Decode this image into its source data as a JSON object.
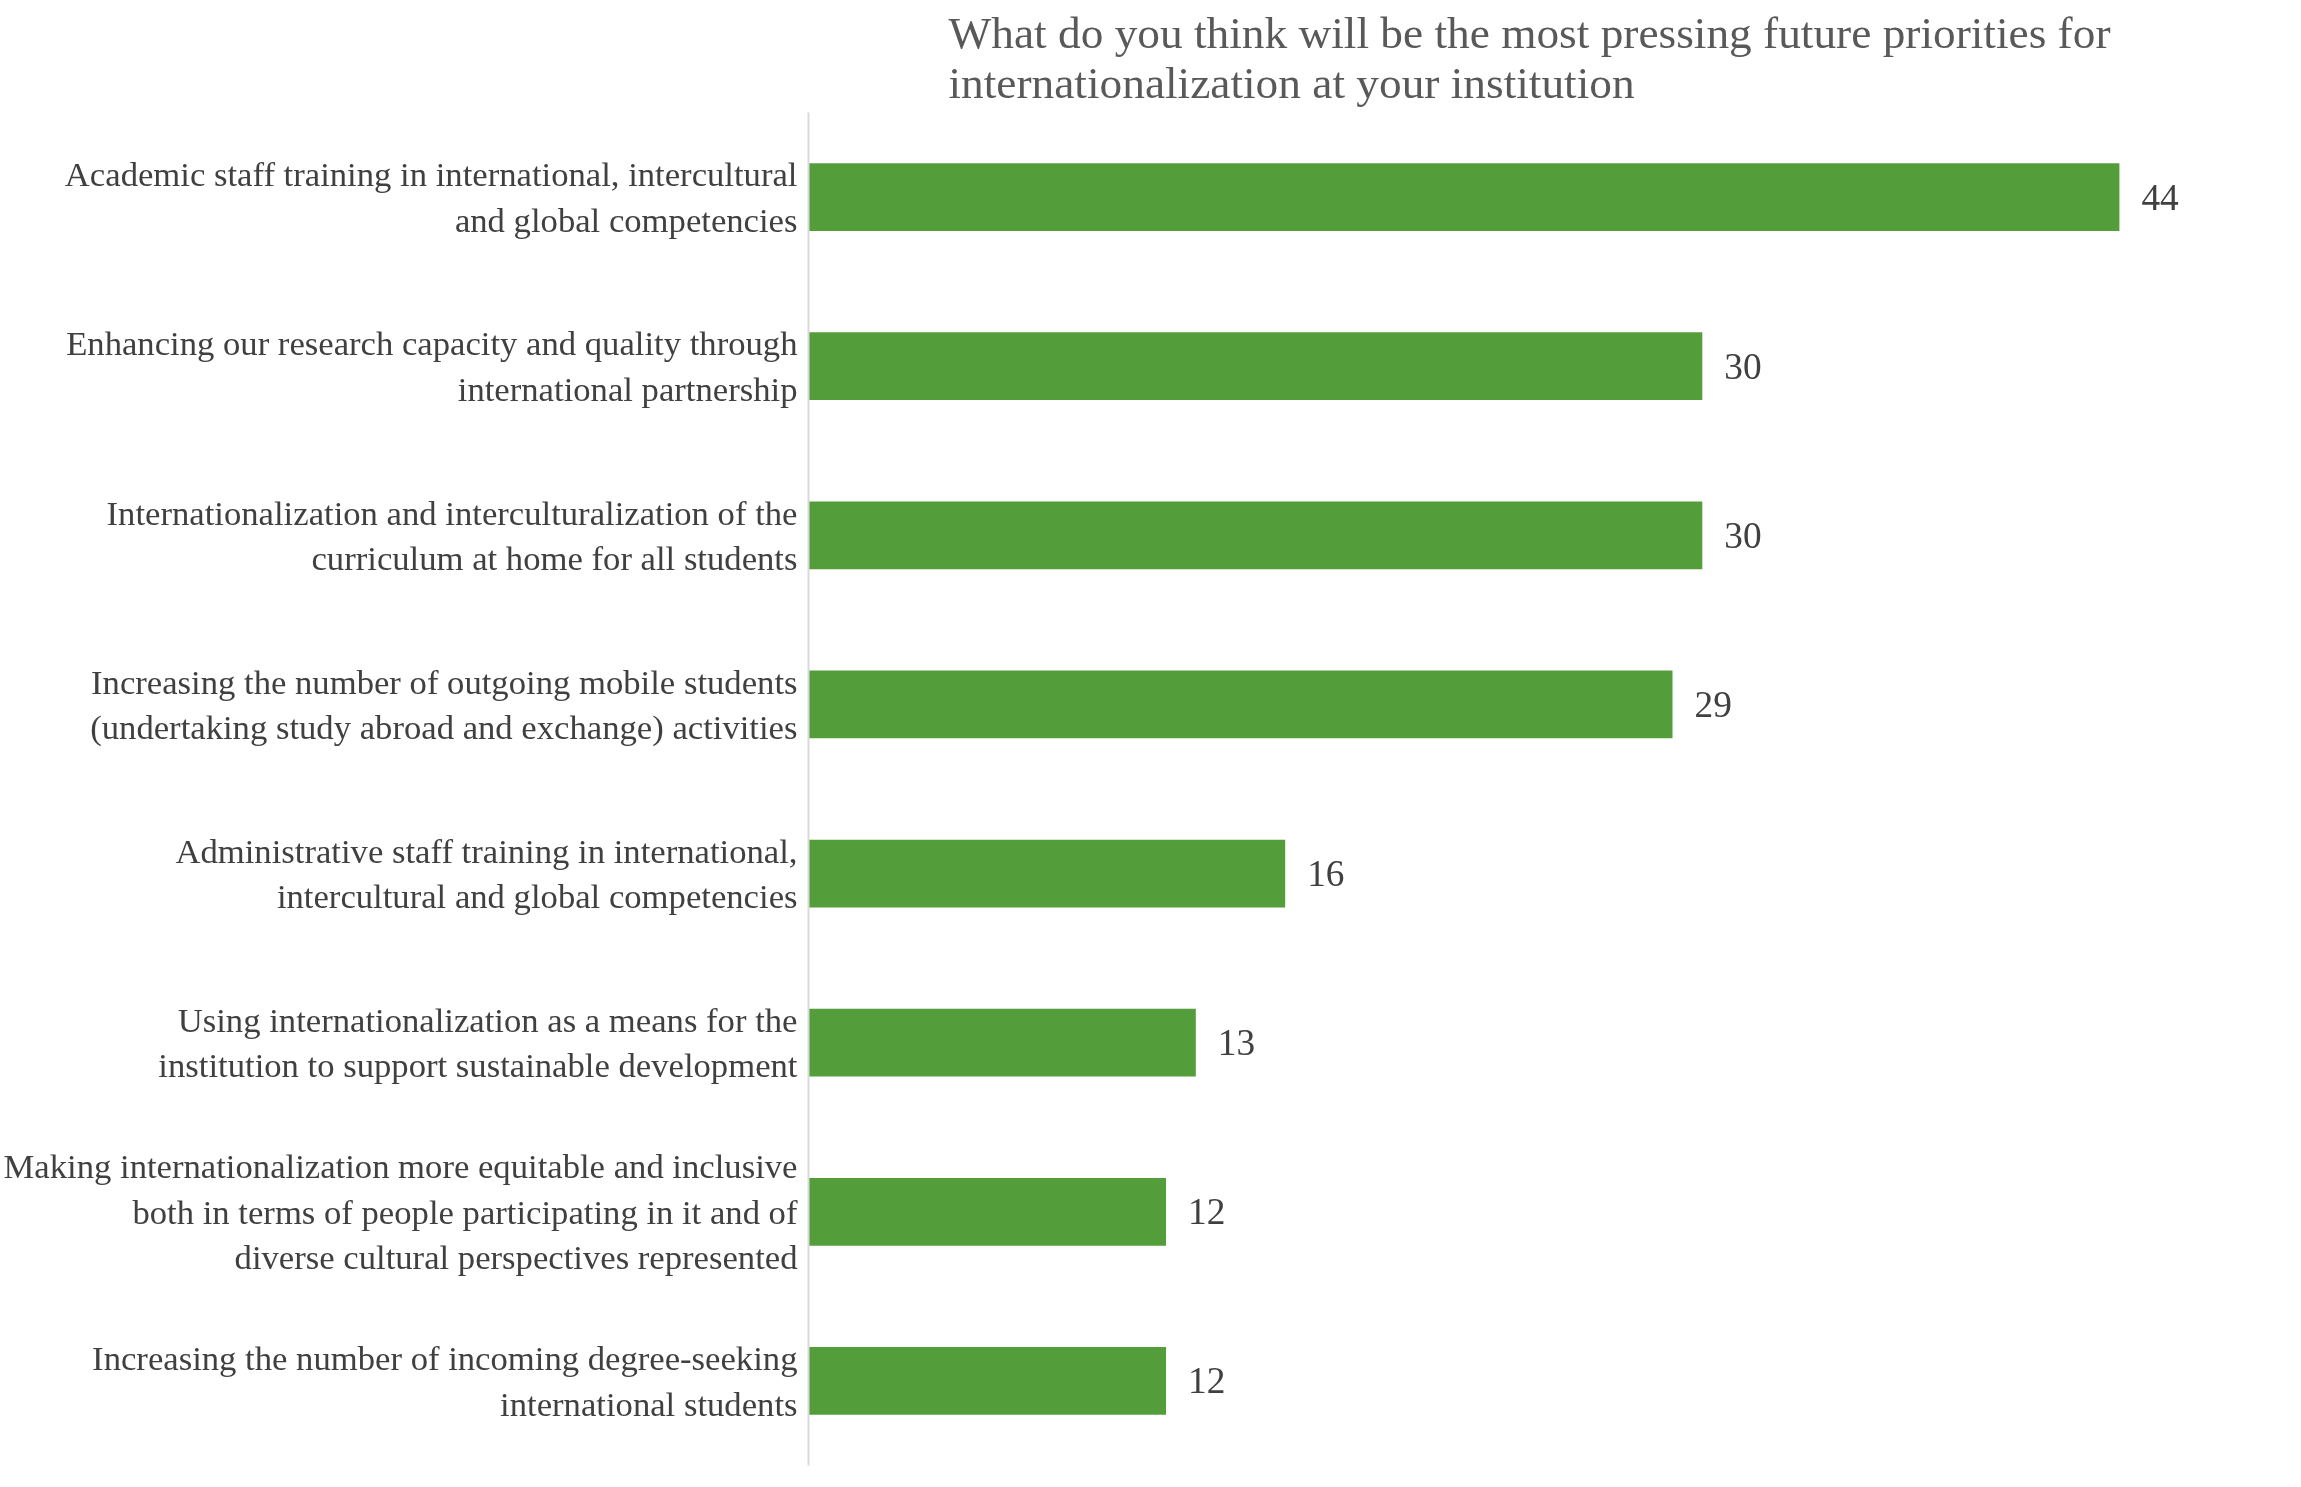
{
  "chart_data": {
    "type": "bar",
    "orientation": "horizontal",
    "title": "What do you think will be the most pressing future priorities for internationalization at your institution",
    "categories": [
      "Academic staff training in international, intercultural and global competencies",
      "Enhancing our research capacity and quality through international partnership",
      "Internationalization and interculturalization of the curriculum at home for all students",
      "Increasing the number of outgoing mobile students (undertaking study abroad and exchange) activities",
      "Administrative staff training in international, intercultural and global competencies",
      "Using internationalization as a means for the institution to support sustainable development",
      "Making internationalization more equitable and inclusive both in terms of people participating in it and of diverse cultural perspectives represented",
      "Increasing the number of incoming degree-seeking international students"
    ],
    "values": [
      44,
      30,
      30,
      29,
      16,
      13,
      12,
      12
    ],
    "color": "#539e3a",
    "data_labels": true,
    "grid": false
  }
}
